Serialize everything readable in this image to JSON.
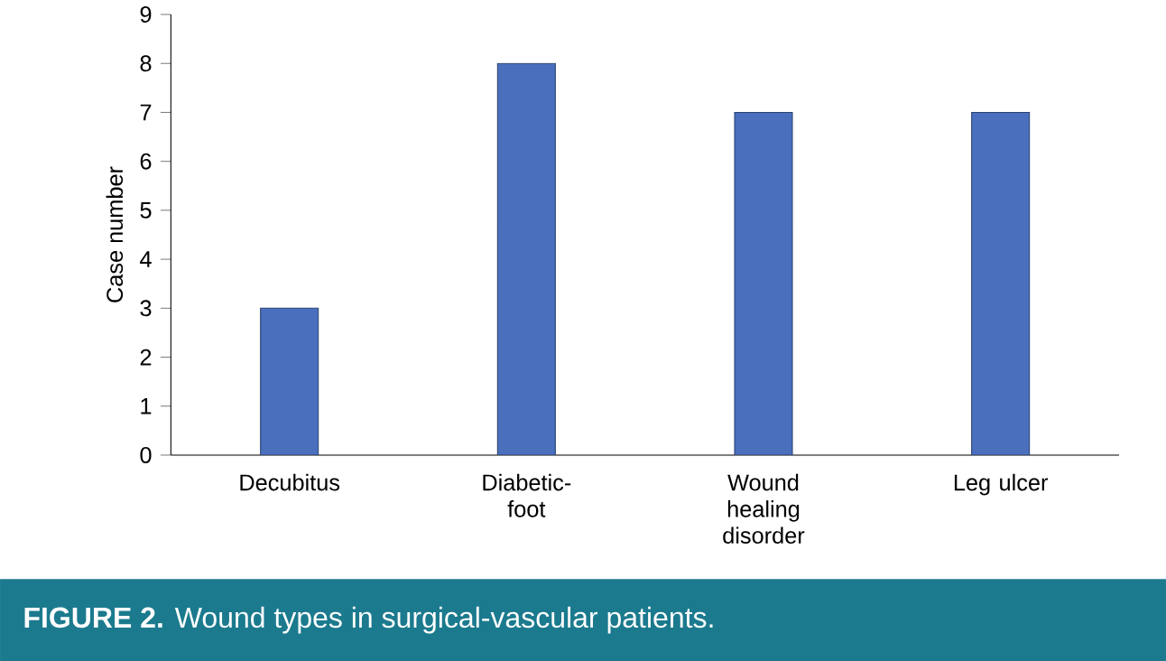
{
  "chart_data": {
    "type": "bar",
    "title": "**FIGURE 2.** Wound types in surgical-vascular patients.",
    "ylabel": "Case number",
    "categories": [
      "Decubitus",
      "Diabetic-foot",
      "Wound healing disorder",
      "Leg ulcer"
    ],
    "values": [
      3,
      8,
      7,
      7
    ],
    "color": "#4a6fbd",
    "ylim": [
      0,
      9
    ],
    "yticks": [
      0,
      1,
      2,
      3,
      4,
      5,
      6,
      7,
      8,
      9
    ],
    "grid": false
  }
}
